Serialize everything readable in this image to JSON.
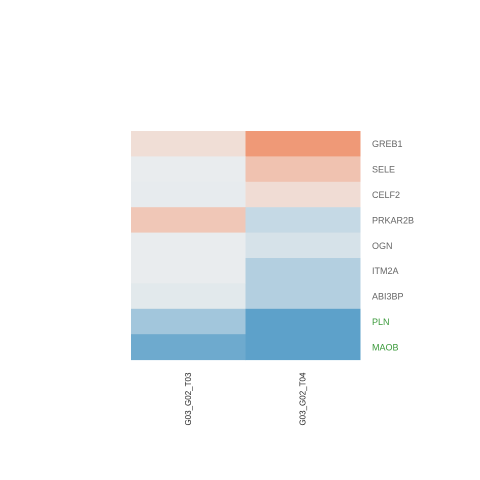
{
  "chart_data": {
    "type": "heatmap",
    "title": "",
    "columns": [
      "G03_G02_T03",
      "G03_G02_T04"
    ],
    "rows": [
      {
        "label": "GREB1",
        "label_color": "#666666",
        "values": [
          0.18,
          0.85
        ]
      },
      {
        "label": "SELE",
        "label_color": "#666666",
        "values": [
          -0.04,
          0.45
        ]
      },
      {
        "label": "CELF2",
        "label_color": "#666666",
        "values": [
          -0.05,
          0.2
        ]
      },
      {
        "label": "PRKAR2B",
        "label_color": "#666666",
        "values": [
          0.4,
          -0.25
        ]
      },
      {
        "label": "OGN",
        "label_color": "#666666",
        "values": [
          -0.04,
          -0.15
        ]
      },
      {
        "label": "ITM2A",
        "label_color": "#666666",
        "values": [
          -0.04,
          -0.35
        ]
      },
      {
        "label": "ABI3BP",
        "label_color": "#666666",
        "values": [
          -0.08,
          -0.35
        ]
      },
      {
        "label": "PLN",
        "label_color": "#3b9a3b",
        "values": [
          -0.45,
          -0.85
        ]
      },
      {
        "label": "MAOB",
        "label_color": "#3b9a3b",
        "values": [
          -0.75,
          -0.85
        ]
      }
    ],
    "value_range": [
      -1,
      1
    ],
    "colors": {
      "low": "#4393c3",
      "mid": "#f0f0f0",
      "high": "#ef8a62"
    },
    "legend": "none"
  }
}
